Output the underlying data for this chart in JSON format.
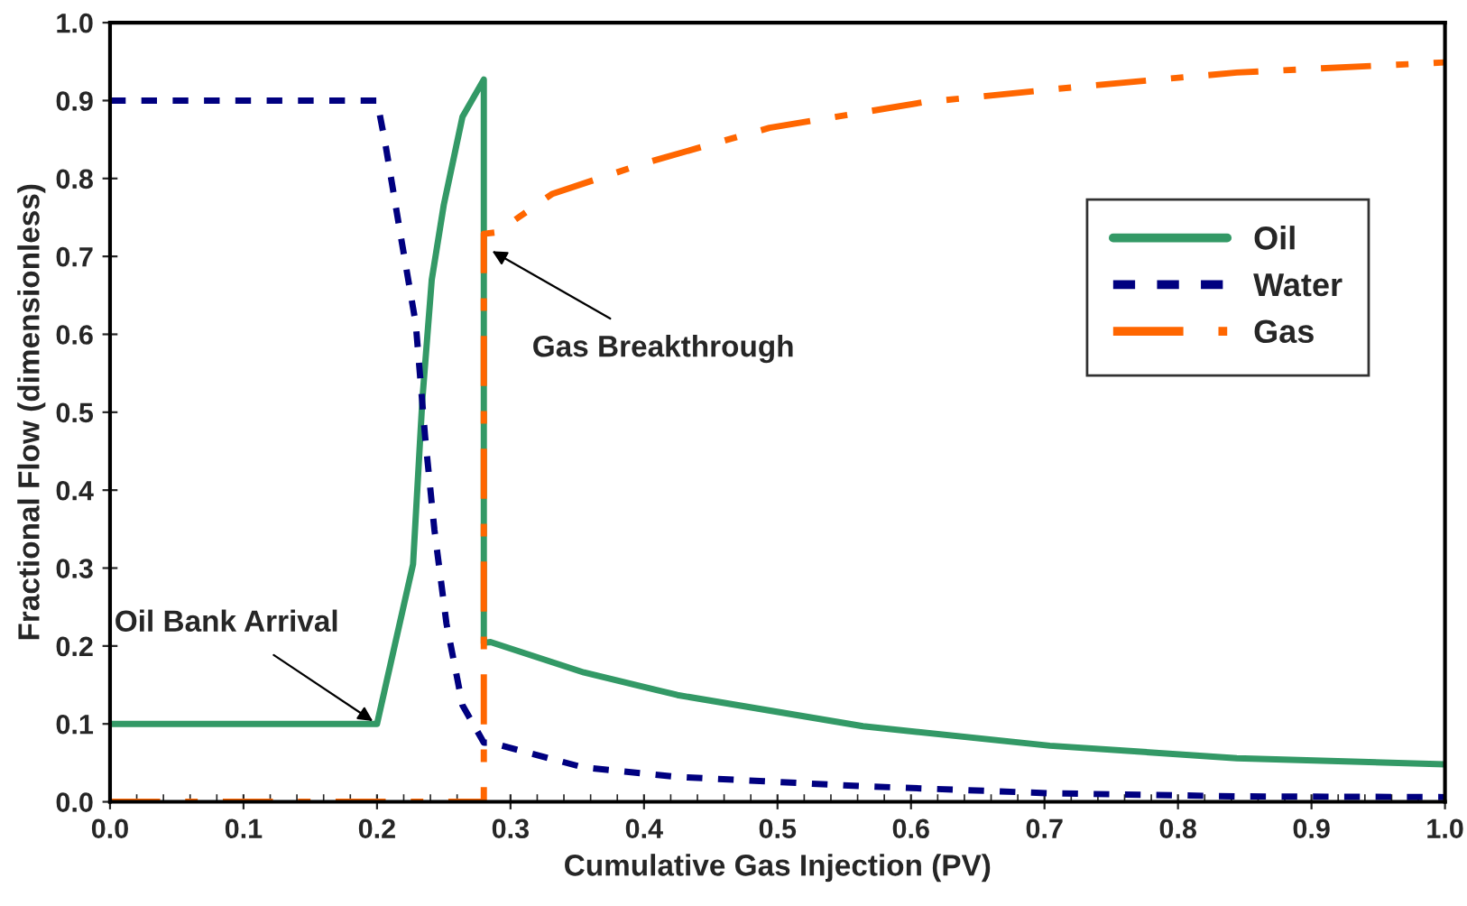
{
  "chart_data": {
    "type": "line",
    "xlabel": "Cumulative Gas Injection (PV)",
    "ylabel": "Fractional Flow (dimensionless)",
    "xlim": [
      0.0,
      1.0
    ],
    "xticks": [
      {
        "value": 0.0,
        "label": "0.0"
      },
      0.1,
      0.2,
      0.3,
      0.4,
      0.5,
      0.6,
      0.7,
      0.8,
      0.9,
      {
        "value": 1.0,
        "label": "1.0"
      }
    ],
    "ylim": [
      0.0,
      1.0
    ],
    "yticks": [
      {
        "value": 0.0,
        "label": "0.0"
      },
      0.1,
      0.2,
      0.3,
      0.4,
      0.5,
      0.6,
      0.7,
      0.8,
      0.9,
      {
        "value": 1.0,
        "label": "1.0"
      }
    ],
    "grid": false,
    "legend": "right",
    "marker": "none",
    "series": [
      {
        "name": "Oil",
        "color": "#339966",
        "line_style": "solid",
        "x": [
          0.0,
          0.2,
          0.227,
          0.234,
          0.241,
          0.25,
          0.264,
          0.28,
          0.28,
          0.285,
          0.355,
          0.425,
          0.564,
          0.704,
          0.844,
          1.0
        ],
        "values": [
          0.1,
          0.1,
          0.305,
          0.517,
          0.67,
          0.766,
          0.879,
          0.927,
          0.204,
          0.205,
          0.166,
          0.137,
          0.097,
          0.072,
          0.056,
          0.048
        ]
      },
      {
        "name": "Water",
        "color": "#000080",
        "line_style": "dashed",
        "x": [
          0.0,
          0.2,
          0.206,
          0.217,
          0.229,
          0.236,
          0.243,
          0.252,
          0.264,
          0.28,
          0.285,
          0.355,
          0.425,
          0.564,
          0.704,
          0.844,
          1.0
        ],
        "values": [
          0.9,
          0.9,
          0.847,
          0.734,
          0.614,
          0.469,
          0.349,
          0.229,
          0.124,
          0.076,
          0.076,
          0.044,
          0.032,
          0.02,
          0.011,
          0.007,
          0.006
        ]
      },
      {
        "name": "Gas",
        "color": "#ff6600",
        "line_style": "dashdot",
        "x": [
          0.0,
          0.28,
          0.28,
          0.29,
          0.331,
          0.401,
          0.494,
          0.61,
          0.727,
          0.844,
          1.0
        ],
        "values": [
          0.0,
          0.0,
          0.729,
          0.731,
          0.78,
          0.82,
          0.865,
          0.898,
          0.918,
          0.936,
          0.949
        ]
      }
    ],
    "annotations": [
      {
        "text": "Oil Bank Arrival",
        "x": 0.2,
        "y": 0.1
      },
      {
        "text": "Gas Breakthrough",
        "x": 0.283,
        "y": 0.71
      }
    ]
  }
}
